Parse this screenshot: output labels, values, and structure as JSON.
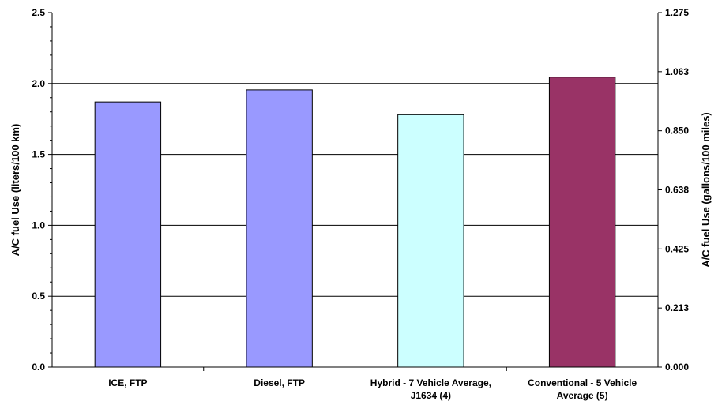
{
  "chart_data": {
    "type": "bar",
    "categories": [
      [
        "ICE, FTP"
      ],
      [
        "Diesel, FTP"
      ],
      [
        "Hybrid - 7 Vehicle Average,",
        "J1634 (4)"
      ],
      [
        "Conventional - 5 Vehicle",
        "Average (5)"
      ]
    ],
    "values": [
      1.87,
      1.955,
      1.78,
      2.045
    ],
    "bar_colors": [
      "#9999ff",
      "#9999ff",
      "#ccffff",
      "#993366"
    ],
    "ylabel": "A/C fuel Use (liters/100 km)",
    "ylabel_right": "A/C fuel Use (gallons/100 miles)",
    "ylim": [
      0,
      2.5
    ],
    "y_ticks": [
      "0.0",
      "0.5",
      "1.0",
      "1.5",
      "2.0",
      "2.5"
    ],
    "ylim_right": [
      0,
      1.275
    ],
    "y_ticks_right": [
      "0.000",
      "0.213",
      "0.425",
      "0.638",
      "0.850",
      "1.063",
      "1.275"
    ],
    "grid": true,
    "legend": "none"
  }
}
